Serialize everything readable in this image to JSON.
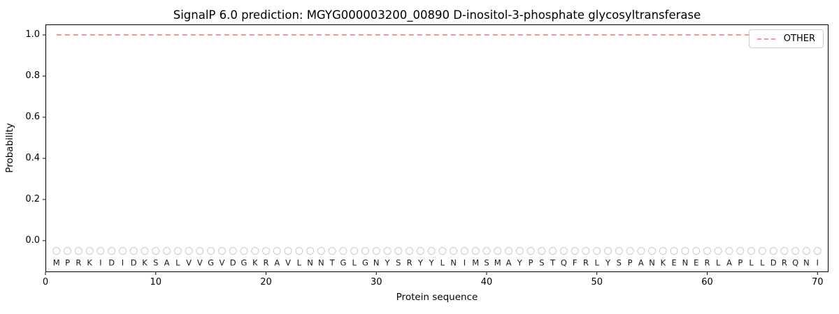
{
  "chart_data": {
    "type": "line",
    "title": "SignalP 6.0 prediction: MGYG000003200_00890 D-inositol-3-phosphate glycosyltransferase",
    "xlabel": "Protein sequence",
    "ylabel": "Probability",
    "xlim": [
      0,
      71
    ],
    "ylim": [
      -0.153,
      1.051
    ],
    "xticks": [
      "0",
      "10",
      "20",
      "30",
      "40",
      "50",
      "60",
      "70"
    ],
    "yticks": [
      "0.0",
      "0.2",
      "0.4",
      "0.6",
      "0.8",
      "1.0"
    ],
    "grid": false,
    "legend": {
      "position": "upper right",
      "entries": [
        {
          "label": "OTHER",
          "color": "#f87171",
          "linestyle": "dashed"
        }
      ]
    },
    "series": [
      {
        "name": "OTHER",
        "color": "#f87171",
        "linestyle": "dashed",
        "x": [
          1,
          2,
          3,
          4,
          5,
          6,
          7,
          8,
          9,
          10,
          11,
          12,
          13,
          14,
          15,
          16,
          17,
          18,
          19,
          20,
          21,
          22,
          23,
          24,
          25,
          26,
          27,
          28,
          29,
          30,
          31,
          32,
          33,
          34,
          35,
          36,
          37,
          38,
          39,
          40,
          41,
          42,
          43,
          44,
          45,
          46,
          47,
          48,
          49,
          50,
          51,
          52,
          53,
          54,
          55,
          56,
          57,
          58,
          59,
          60,
          61,
          62,
          63,
          64,
          65,
          66,
          67,
          68,
          69,
          70
        ],
        "y": [
          1.0,
          1.0,
          1.0,
          1.0,
          1.0,
          1.0,
          1.0,
          1.0,
          1.0,
          1.0,
          1.0,
          1.0,
          1.0,
          1.0,
          1.0,
          1.0,
          1.0,
          1.0,
          1.0,
          1.0,
          1.0,
          1.0,
          1.0,
          1.0,
          1.0,
          1.0,
          1.0,
          1.0,
          1.0,
          1.0,
          1.0,
          1.0,
          1.0,
          1.0,
          1.0,
          1.0,
          1.0,
          1.0,
          1.0,
          1.0,
          1.0,
          1.0,
          1.0,
          1.0,
          1.0,
          1.0,
          1.0,
          1.0,
          1.0,
          1.0,
          1.0,
          1.0,
          1.0,
          1.0,
          1.0,
          1.0,
          1.0,
          1.0,
          1.0,
          1.0,
          1.0,
          1.0,
          1.0,
          1.0,
          1.0,
          1.0,
          1.0,
          1.0,
          1.0,
          1.0
        ]
      }
    ],
    "sequence": {
      "letters": "MPRKIDIDKSALVVGVDGKRAVLNNTGLGNYSRYYLNIMSMAYPSTQFRLYSPANKENERLAPLLDRQNI",
      "marker_y": -0.05,
      "letter_y": -0.107,
      "marker_color": "#c9c9c9",
      "letter_color": "#1a1a1a"
    }
  }
}
